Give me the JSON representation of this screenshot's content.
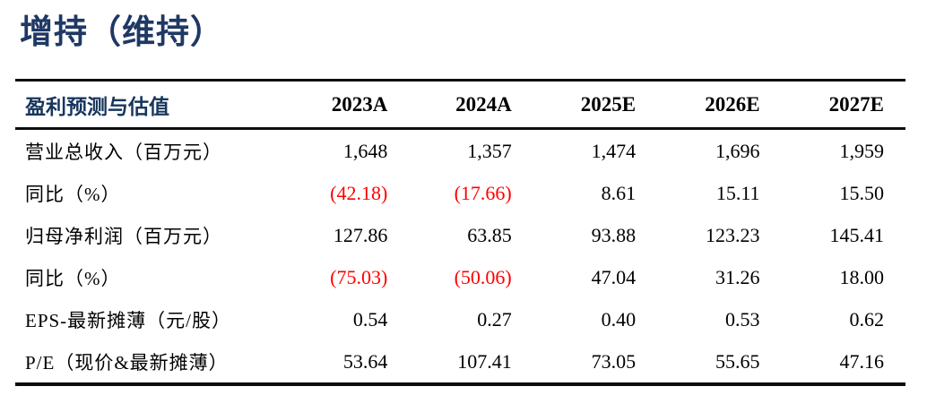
{
  "title": "增持（维持）",
  "colors": {
    "title_navy": "#1f3864",
    "header_label_navy": "#17365d",
    "negative_red": "#ff0000",
    "text_black": "#000000",
    "rule_black": "#0d0d0d"
  },
  "table": {
    "header": {
      "label": "盈利预测与估值",
      "columns": [
        "2023A",
        "2024A",
        "2025E",
        "2026E",
        "2027E"
      ]
    },
    "rows": [
      {
        "label": "营业总收入（百万元）",
        "values": [
          "1,648",
          "1,357",
          "1,474",
          "1,696",
          "1,959"
        ]
      },
      {
        "label": "同比（%）",
        "values": [
          "(42.18)",
          "(17.66)",
          "8.61",
          "15.11",
          "15.50"
        ]
      },
      {
        "label": "归母净利润（百万元）",
        "values": [
          "127.86",
          "63.85",
          "93.88",
          "123.23",
          "145.41"
        ]
      },
      {
        "label": "同比（%）",
        "values": [
          "(75.03)",
          "(50.06)",
          "47.04",
          "31.26",
          "18.00"
        ]
      },
      {
        "label": "EPS-最新摊薄（元/股）",
        "values": [
          "0.54",
          "0.27",
          "0.40",
          "0.53",
          "0.62"
        ]
      },
      {
        "label": "P/E（现价&最新摊薄）",
        "values": [
          "53.64",
          "107.41",
          "73.05",
          "55.65",
          "47.16"
        ]
      }
    ]
  }
}
